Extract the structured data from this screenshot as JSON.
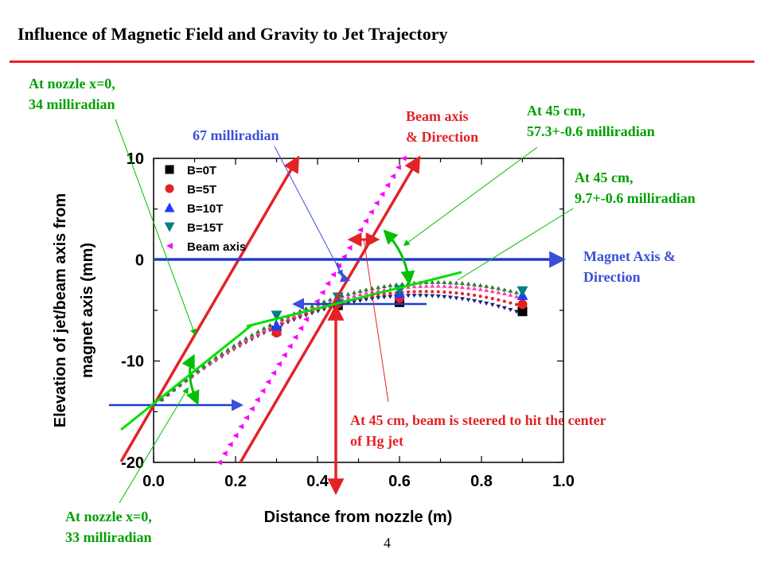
{
  "slide": {
    "title": "Influence of Magnetic Field and Gravity to Jet Trajectory",
    "page_number": "4"
  },
  "annotations": {
    "nozzle_top": [
      "At nozzle x=0,",
      "34 milliradian"
    ],
    "nozzle_bottom": [
      "At nozzle x=0,",
      "33 milliradian"
    ],
    "mrad67": "67 milliradian",
    "beam_axis": [
      "Beam axis",
      "& Direction"
    ],
    "at45_a": [
      "At 45 cm,",
      "57.3+-0.6 milliradian"
    ],
    "at45_b": [
      "At 45 cm,",
      "9.7+-0.6 milliradian"
    ],
    "magnet_axis": [
      "Magnet Axis &",
      "Direction"
    ],
    "steer": [
      "At 45 cm, beam is steered to hit the center",
      "of Hg jet"
    ]
  },
  "colors": {
    "title_rule": "#e32226",
    "green": "#00a000",
    "red": "#e32226",
    "blue": "#3a4fd9",
    "magenta": "#ff00ff"
  },
  "chart_data": {
    "type": "scatter",
    "title": "",
    "xlabel": "Distance from nozzle (m)",
    "ylabel_lines": [
      "Elevation of jet/beam axis from",
      "magnet axis (mm)"
    ],
    "xlim": [
      0.0,
      1.0
    ],
    "ylim": [
      -20,
      10
    ],
    "x_ticks": [
      "0.0",
      "0.2",
      "0.4",
      "0.6",
      "0.8",
      "1.0"
    ],
    "y_ticks": [
      "10",
      "0",
      "-10",
      "-20"
    ],
    "legend_position": "top-left",
    "series": [
      {
        "name": "B=0T",
        "marker": "square",
        "color": "#000000",
        "line_color": "#1a237e",
        "x": [
          0.3,
          0.45,
          0.6,
          0.9
        ],
        "y": [
          -7.0,
          -4.5,
          -4.2,
          -5.1
        ],
        "curve_end": -5.3
      },
      {
        "name": "B=5T",
        "marker": "circle",
        "color": "#e32226",
        "line_color": "#e32226",
        "x": [
          0.3,
          0.45,
          0.6,
          0.9
        ],
        "y": [
          -7.2,
          -4.3,
          -3.8,
          -4.4
        ],
        "curve_end": -4.6
      },
      {
        "name": "B=10T",
        "marker": "triangle-up",
        "color": "#1e3dff",
        "line_color": "#ff3fb0",
        "x": [
          0.3,
          0.45,
          0.6,
          0.9
        ],
        "y": [
          -6.5,
          -4.0,
          -3.3,
          -3.5
        ],
        "curve_end": -3.8
      },
      {
        "name": "B=15T",
        "marker": "triangle-down",
        "color": "#008080",
        "line_color": "#2e7d32",
        "x": [
          0.3,
          0.45,
          0.6,
          0.9
        ],
        "y": [
          -5.5,
          -3.7,
          -3.0,
          -3.1
        ],
        "curve_end": -3.4
      },
      {
        "name": "Beam axis",
        "marker": "triangle-left",
        "color": "#ff00ff",
        "x": [
          0.16,
          0.61
        ],
        "y": [
          -20,
          10
        ]
      }
    ]
  }
}
